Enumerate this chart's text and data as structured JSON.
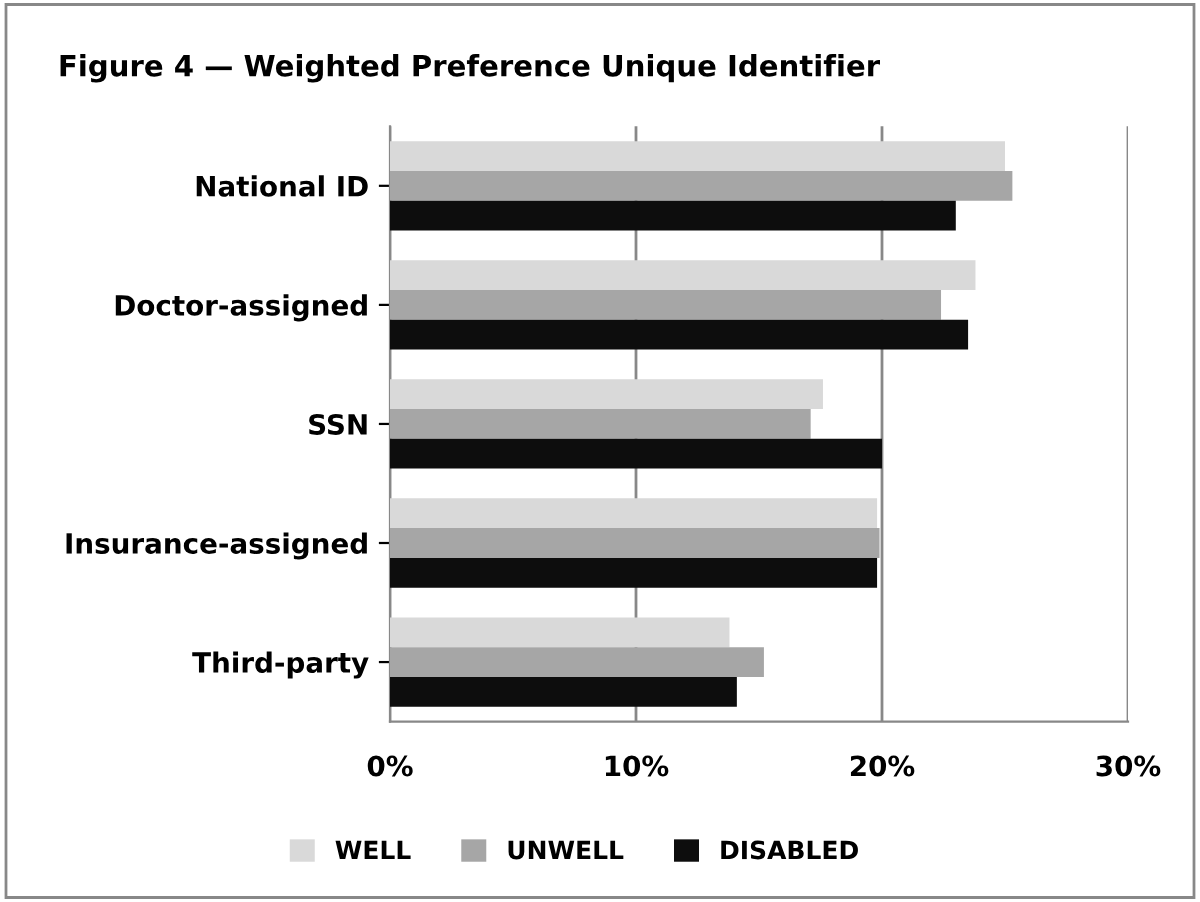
{
  "chart_data": {
    "type": "bar",
    "orientation": "horizontal",
    "title": "Figure 4 — Weighted Preference Unique Identifier",
    "categories": [
      "National ID",
      "Doctor-assigned",
      "SSN",
      "Insurance-assigned",
      "Third-party"
    ],
    "series": [
      {
        "name": "WELL",
        "color": "#d9d9d9",
        "values": [
          25.0,
          23.8,
          17.6,
          19.8,
          13.8
        ]
      },
      {
        "name": "UNWELL",
        "color": "#a6a6a6",
        "values": [
          25.3,
          22.4,
          17.1,
          19.9,
          15.2
        ]
      },
      {
        "name": "DISABLED",
        "color": "#0d0d0d",
        "values": [
          23.0,
          23.5,
          20.0,
          19.8,
          14.1
        ]
      }
    ],
    "xlim": [
      0,
      30
    ],
    "xticks": [
      {
        "value": 0,
        "label": "0%"
      },
      {
        "value": 10,
        "label": "10%"
      },
      {
        "value": 20,
        "label": "20%"
      },
      {
        "value": 30,
        "label": "30%"
      }
    ],
    "grid": "x",
    "legend": "bottom"
  }
}
